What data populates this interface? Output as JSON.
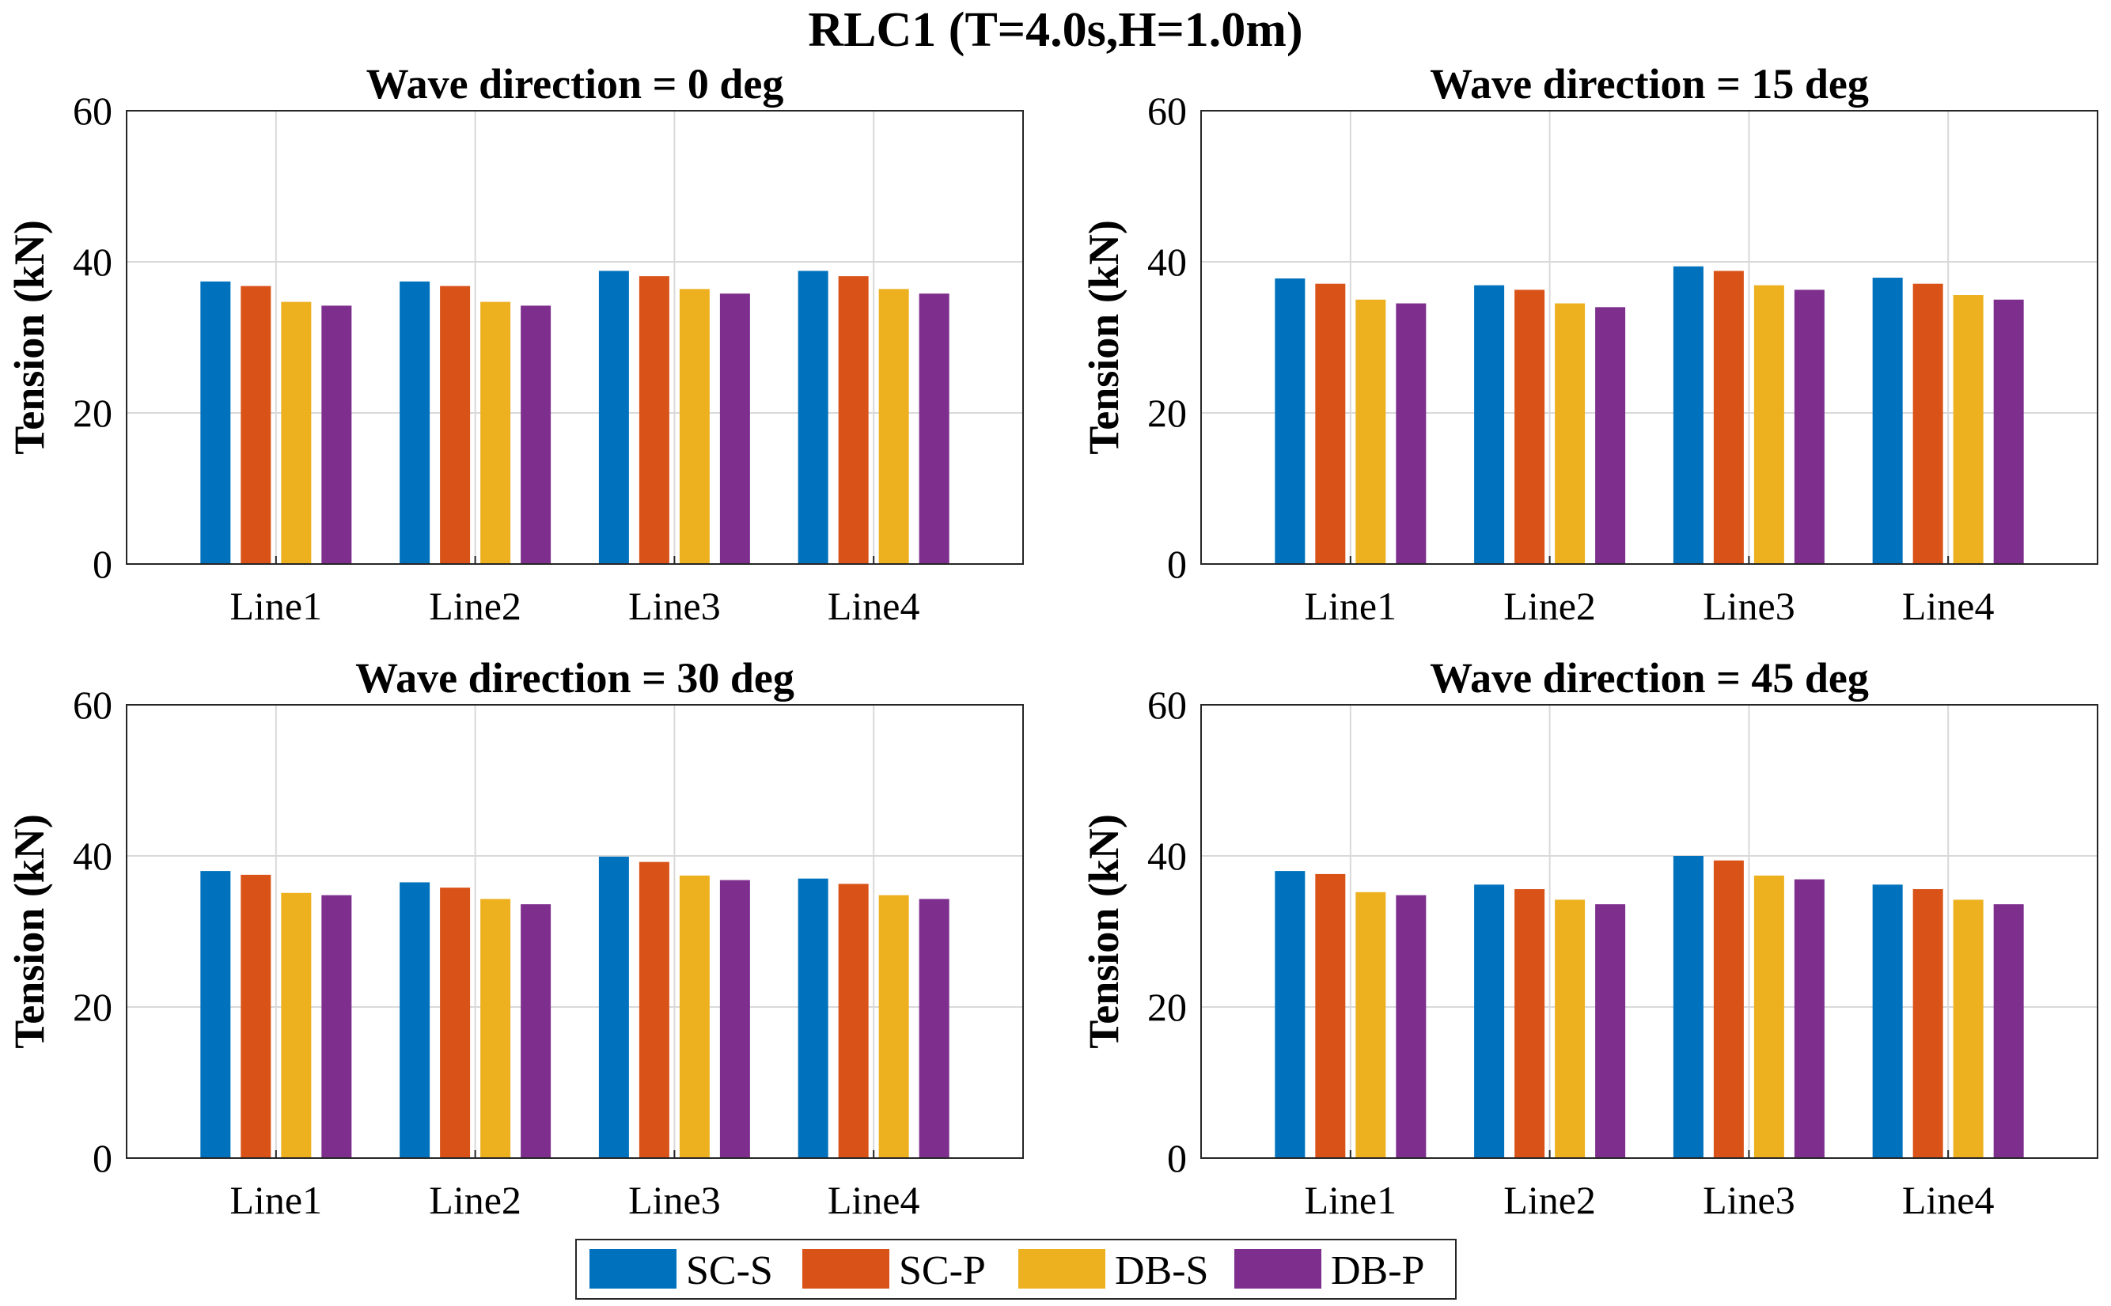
{
  "title": "RLC1 (T=4.0s,H=1.0m)",
  "legend": [
    {
      "label": "SC-S",
      "color": "#0072BD"
    },
    {
      "label": "SC-P",
      "color": "#D95319"
    },
    {
      "label": "DB-S",
      "color": "#EDB120"
    },
    {
      "label": "DB-P",
      "color": "#7E2F8E"
    }
  ],
  "chart_data": [
    {
      "type": "bar",
      "title": "Wave direction = 0 deg",
      "xlabel": "",
      "ylabel": "Tension (kN)",
      "ylim": [
        0,
        60
      ],
      "yticks": [
        0,
        20,
        40,
        60
      ],
      "grid": true,
      "categories": [
        "Line1",
        "Line2",
        "Line3",
        "Line4"
      ],
      "series": [
        {
          "name": "SC-S",
          "values": [
            37.4,
            37.4,
            38.8,
            38.8
          ]
        },
        {
          "name": "SC-P",
          "values": [
            36.8,
            36.8,
            38.1,
            38.1
          ]
        },
        {
          "name": "DB-S",
          "values": [
            34.7,
            34.7,
            36.4,
            36.4
          ]
        },
        {
          "name": "DB-P",
          "values": [
            34.2,
            34.2,
            35.8,
            35.8
          ]
        }
      ]
    },
    {
      "type": "bar",
      "title": "Wave direction = 15 deg",
      "xlabel": "",
      "ylabel": "Tension (kN)",
      "ylim": [
        0,
        60
      ],
      "yticks": [
        0,
        20,
        40,
        60
      ],
      "grid": true,
      "categories": [
        "Line1",
        "Line2",
        "Line3",
        "Line4"
      ],
      "series": [
        {
          "name": "SC-S",
          "values": [
            37.8,
            36.9,
            39.4,
            37.9
          ]
        },
        {
          "name": "SC-P",
          "values": [
            37.1,
            36.3,
            38.8,
            37.1
          ]
        },
        {
          "name": "DB-S",
          "values": [
            35.0,
            34.5,
            36.9,
            35.6
          ]
        },
        {
          "name": "DB-P",
          "values": [
            34.5,
            34.0,
            36.3,
            35.0
          ]
        }
      ]
    },
    {
      "type": "bar",
      "title": "Wave direction = 30 deg",
      "xlabel": "",
      "ylabel": "Tension (kN)",
      "ylim": [
        0,
        60
      ],
      "yticks": [
        0,
        20,
        40,
        60
      ],
      "grid": true,
      "categories": [
        "Line1",
        "Line2",
        "Line3",
        "Line4"
      ],
      "series": [
        {
          "name": "SC-S",
          "values": [
            38.0,
            36.5,
            39.9,
            37.0
          ]
        },
        {
          "name": "SC-P",
          "values": [
            37.5,
            35.8,
            39.2,
            36.3
          ]
        },
        {
          "name": "DB-S",
          "values": [
            35.1,
            34.3,
            37.4,
            34.8
          ]
        },
        {
          "name": "DB-P",
          "values": [
            34.8,
            33.6,
            36.8,
            34.3
          ]
        }
      ]
    },
    {
      "type": "bar",
      "title": "Wave direction = 45 deg",
      "xlabel": "",
      "ylabel": "Tension (kN)",
      "ylim": [
        0,
        60
      ],
      "yticks": [
        0,
        20,
        40,
        60
      ],
      "grid": true,
      "categories": [
        "Line1",
        "Line2",
        "Line3",
        "Line4"
      ],
      "series": [
        {
          "name": "SC-S",
          "values": [
            38.0,
            36.2,
            40.0,
            36.2
          ]
        },
        {
          "name": "SC-P",
          "values": [
            37.6,
            35.6,
            39.4,
            35.6
          ]
        },
        {
          "name": "DB-S",
          "values": [
            35.2,
            34.2,
            37.4,
            34.2
          ]
        },
        {
          "name": "DB-P",
          "values": [
            34.8,
            33.6,
            36.9,
            33.6
          ]
        }
      ]
    }
  ]
}
